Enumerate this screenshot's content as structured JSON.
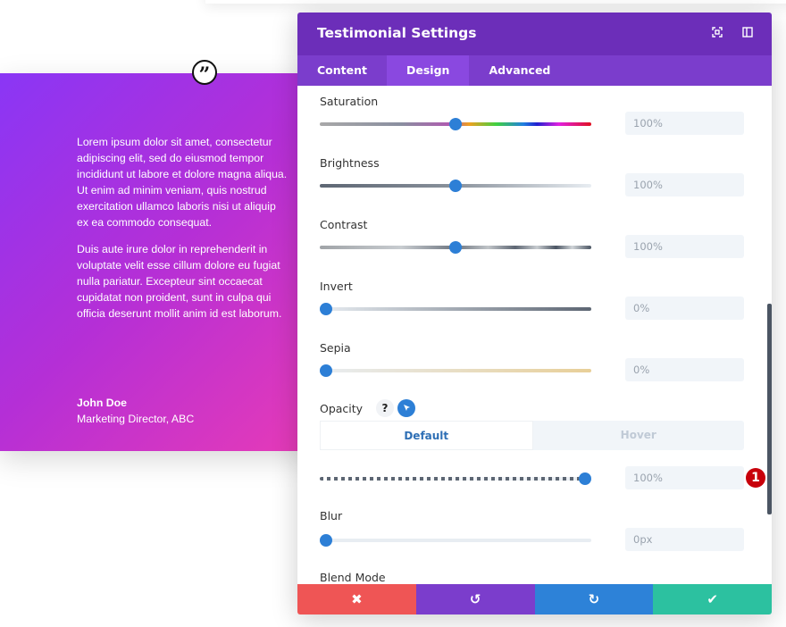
{
  "testimonial": {
    "quote_icon": "quote-icon",
    "paragraphs": [
      "Lorem ipsum dolor sit amet, consectetur adipiscing elit, sed do eiusmod tempor incididunt ut labore et dolore magna aliqua. Ut enim ad minim veniam, quis nostrud exercitation ullamco laboris nisi ut aliquip ex ea commodo consequat.",
      "Duis aute irure dolor in reprehenderit in voluptate velit esse cillum dolore eu fugiat nulla pariatur. Excepteur sint occaecat cupidatat non proident, sunt in culpa qui officia deserunt mollit anim id est laborum."
    ],
    "author_name": "John Doe",
    "author_title": "Marketing Director, ABC",
    "gradient": [
      "#8a36f5",
      "#e83bb6"
    ]
  },
  "modal": {
    "title": "Testimonial Settings",
    "header_icons": [
      "fullscreen-icon",
      "sidebar-icon"
    ],
    "tabs": [
      {
        "label": "Content"
      },
      {
        "label": "Design",
        "active": true
      },
      {
        "label": "Advanced"
      }
    ],
    "settings": [
      {
        "label": "Saturation",
        "value": "100%",
        "level": 0.5
      },
      {
        "label": "Brightness",
        "value": "100%",
        "level": 0.5
      },
      {
        "label": "Contrast",
        "value": "100%",
        "level": 0.5
      },
      {
        "label": "Invert",
        "value": "0%",
        "level": 0
      },
      {
        "label": "Sepia",
        "value": "0%",
        "level": 0
      }
    ],
    "opacity": {
      "label": "Opacity",
      "help": "?",
      "toggle": [
        "Default",
        "Hover"
      ],
      "value": "100%",
      "level": 1,
      "badge": "1"
    },
    "blur": {
      "label": "Blur",
      "value": "0px",
      "level": 0
    },
    "blend_mode": {
      "label": "Blend Mode"
    },
    "footer": {
      "cancel": "✖",
      "undo": "↺",
      "redo": "↻",
      "save": "✔"
    },
    "colors": {
      "header": "#6c2eb9",
      "tabs": "#7b3dcc",
      "cancel": "#ef5555",
      "undo": "#7b3dcc",
      "redo": "#2d82d8",
      "save": "#2cc1a0",
      "accent": "#2d7fd6"
    }
  }
}
